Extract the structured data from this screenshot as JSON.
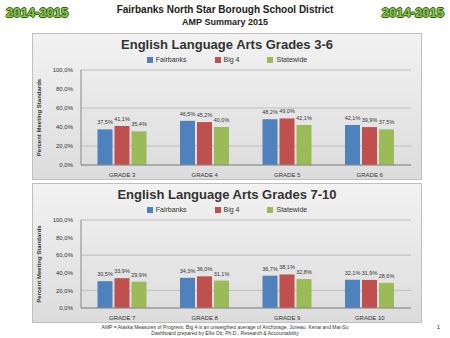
{
  "header": {
    "title": "Fairbanks North Star Borough School District",
    "subtitle": "AMP Summary 2015",
    "badges": [
      "2014-2015",
      "2014-2015"
    ]
  },
  "chart_data": [
    {
      "type": "bar",
      "title": "English Language Arts Grades 3-6",
      "y_label": "Percent Meeting Standards",
      "categories": [
        "GRADE 3",
        "GRADE 4",
        "GRADE 5",
        "GRADE 6"
      ],
      "series": [
        {
          "name": "Fairbanks",
          "color": "#4f81bd",
          "values": [
            37.5,
            46.5,
            48.2,
            42.1
          ],
          "value_labels": [
            "37,5%",
            "46,5%",
            "48,2%",
            "42,1%"
          ]
        },
        {
          "name": "Big 4",
          "color": "#c0504d",
          "values": [
            41.1,
            45.2,
            49.0,
            39.9
          ],
          "value_labels": [
            "41,1%",
            "45,2%",
            "49,0%",
            "39,9%"
          ]
        },
        {
          "name": "Statewide",
          "color": "#9bbb59",
          "values": [
            35.4,
            40.0,
            42.1,
            37.5
          ],
          "value_labels": [
            "35,4%",
            "40,0%",
            "42,1%",
            "37,5%"
          ]
        }
      ],
      "ylim": [
        0,
        100
      ],
      "yticks": [
        {
          "value": 0,
          "label": "0,0%"
        },
        {
          "value": 20,
          "label": "20,0%"
        },
        {
          "value": 40,
          "label": "40,0%"
        },
        {
          "value": 60,
          "label": "60,0%"
        },
        {
          "value": 80,
          "label": "80,0%"
        },
        {
          "value": 100,
          "label": "100,0%"
        }
      ],
      "grid": true,
      "legend": "top",
      "data_labels": true
    },
    {
      "type": "bar",
      "title": "English Language Arts Grades 7-10",
      "y_label": "Percent Meeting Standards",
      "categories": [
        "GRADE 7",
        "GRADE 8",
        "GRADE 9",
        "GRADE 10"
      ],
      "series": [
        {
          "name": "Fairbanks",
          "color": "#4f81bd",
          "values": [
            30.5,
            34.3,
            36.7,
            32.1
          ],
          "value_labels": [
            "30,5%",
            "34,3%",
            "36,7%",
            "32,1%"
          ]
        },
        {
          "name": "Big 4",
          "color": "#c0504d",
          "values": [
            33.9,
            36.0,
            38.1,
            31.9
          ],
          "value_labels": [
            "33,9%",
            "36,0%",
            "38,1%",
            "31,9%"
          ]
        },
        {
          "name": "Statewide",
          "color": "#9bbb59",
          "values": [
            29.9,
            31.1,
            32.8,
            28.6
          ],
          "value_labels": [
            "29,9%",
            "31,1%",
            "32,8%",
            "28,6%"
          ]
        }
      ],
      "ylim": [
        0,
        100
      ],
      "yticks": [
        {
          "value": 0,
          "label": "0,0%"
        },
        {
          "value": 20,
          "label": "20,0%"
        },
        {
          "value": 40,
          "label": "40,0%"
        },
        {
          "value": 60,
          "label": "60,0%"
        },
        {
          "value": 80,
          "label": "80,0%"
        },
        {
          "value": 100,
          "label": "100,0%"
        }
      ],
      "grid": true,
      "legend": "top",
      "data_labels": true
    }
  ],
  "footer": {
    "notes": [
      "AMP = Alaska Measures of Progress; Big 4 is an unweighted average of Anchorage, Juneau, Kenai and Mat-Su",
      "Dashboard prepared by Ellis Ott, Ph.D., Research & Accountability"
    ],
    "page": "1"
  }
}
